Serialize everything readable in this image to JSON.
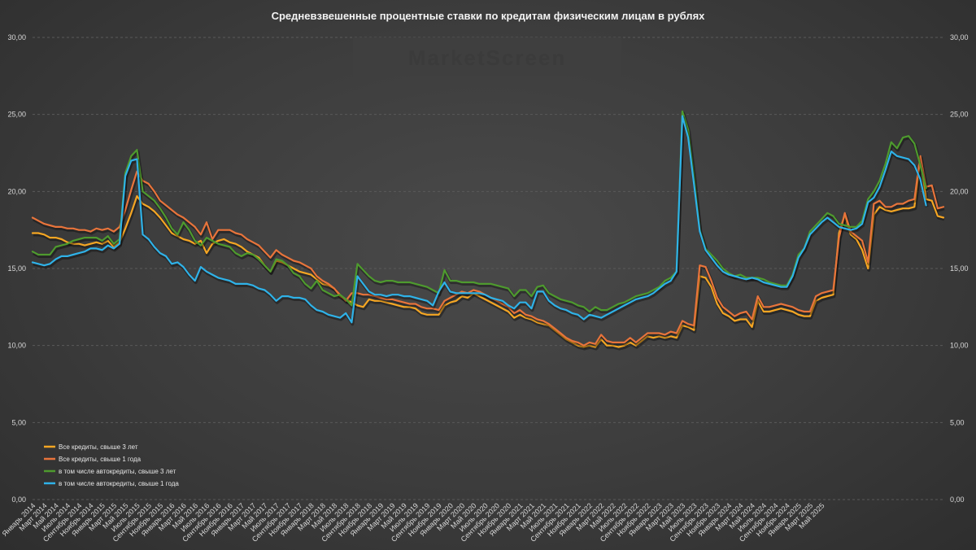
{
  "chart_data": {
    "type": "line",
    "title": "Средневзвешенные процентные ставки по кредитам физическим лицам в рублях",
    "xlabel": "",
    "ylabel": "",
    "ylim": [
      0,
      30
    ],
    "y_ticks": [
      "0,00",
      "5,00",
      "10,00",
      "15,00",
      "20,00",
      "25,00",
      "30,00"
    ],
    "grid": true,
    "legend_position": "bottom-left",
    "watermark": "MarketScreen",
    "x_tick_labels": [
      "Январь 2014",
      "Март 2014",
      "Май 2014",
      "Июль 2014",
      "Сентябрь 2014",
      "Ноябрь 2014",
      "Январь 2015",
      "Март 2015",
      "Май 2015",
      "Июль 2015",
      "Сентябрь 2015",
      "Ноябрь 2015",
      "Январь 2016",
      "Март 2016",
      "Май 2016",
      "Июль 2016",
      "Сентябрь 2016",
      "Ноябрь 2016",
      "Январь 2017",
      "Март 2017",
      "Май 2017",
      "Июль 2017",
      "Сентябрь 2017",
      "Ноябрь 2017",
      "Январь 2018",
      "Март 2018",
      "Май 2018",
      "Июль 2018",
      "Сентябрь 2018",
      "Ноябрь 2018",
      "Январь 2019",
      "Март 2019",
      "Май 2019",
      "Июль 2019",
      "Сентябрь 2019",
      "Ноябрь 2019",
      "Январь 2020",
      "Март 2020",
      "Май 2020",
      "Июль 2020",
      "Сентябрь 2020",
      "Ноябрь 2020",
      "Январь 2021",
      "Март 2021",
      "Май 2021",
      "Июль 2021",
      "Сентябрь 2021",
      "Ноябрь 2021",
      "Январь 2022",
      "Март 2022",
      "Май 2022",
      "Июль 2022",
      "Сентябрь 2022",
      "Ноябрь 2022",
      "Январь 2023",
      "Март 2023",
      "Май 2023",
      "Июль 2023",
      "Сентябрь 2023",
      "Ноябрь 2023",
      "Январь 2024",
      "Март 2024",
      "Май 2024",
      "Июль 2024",
      "Сентябрь 2024",
      "Ноябрь 2024",
      "Январь 2025",
      "Март 2025",
      "Май 2025"
    ],
    "series": [
      {
        "name": "Все кредиты, свыше 3 лет",
        "color": "#f5a623",
        "legend_color": "#f5a623",
        "values": [
          17.3,
          17.3,
          17.2,
          17.0,
          17.0,
          16.9,
          16.7,
          16.6,
          16.6,
          16.5,
          16.6,
          16.7,
          16.6,
          16.8,
          16.4,
          16.7,
          17.6,
          18.6,
          19.7,
          19.2,
          19.0,
          18.7,
          18.3,
          17.8,
          17.3,
          17.1,
          16.9,
          16.8,
          16.6,
          16.8,
          16.0,
          16.6,
          16.8,
          16.9,
          16.7,
          16.6,
          16.4,
          16.1,
          15.9,
          15.7,
          15.2,
          14.8,
          15.5,
          15.4,
          15.2,
          15.0,
          14.8,
          14.7,
          14.6,
          14.3,
          14.0,
          13.9,
          13.7,
          13.2,
          13.0,
          12.8,
          12.6,
          12.5,
          13.0,
          12.9,
          12.9,
          12.8,
          12.7,
          12.6,
          12.5,
          12.5,
          12.4,
          12.1,
          12.0,
          12.0,
          12.0,
          12.6,
          12.8,
          12.9,
          13.2,
          13.1,
          13.4,
          13.2,
          13.0,
          12.8,
          12.6,
          12.4,
          12.2,
          11.8,
          12.0,
          11.8,
          11.7,
          11.5,
          11.4,
          11.3,
          11.0,
          10.7,
          10.4,
          10.2,
          10.0,
          9.9,
          10.0,
          9.9,
          10.4,
          10.0,
          10.0,
          9.9,
          10.0,
          10.2,
          10.0,
          10.3,
          10.6,
          10.5,
          10.6,
          10.5,
          10.6,
          10.5,
          11.3,
          11.2,
          11.0,
          14.5,
          14.4,
          13.8,
          12.7,
          12.1,
          11.9,
          11.6,
          11.7,
          11.7,
          11.2,
          12.9,
          12.2,
          12.2,
          12.3,
          12.4,
          12.3,
          12.2,
          12.0,
          11.9,
          11.9,
          12.9,
          13.1,
          13.2,
          13.3,
          17.3,
          18.5,
          17.2,
          16.9,
          16.2,
          15.0,
          18.5,
          19.0,
          18.8,
          18.7,
          18.8,
          18.9,
          18.9,
          19.0,
          22.2,
          19.5,
          19.4,
          18.4,
          18.3
        ]
      },
      {
        "name": "Все кредиты, свыше 1 года",
        "color": "#e8743b",
        "legend_color": "#e8743b",
        "values": [
          18.3,
          18.1,
          17.9,
          17.8,
          17.7,
          17.7,
          17.6,
          17.6,
          17.5,
          17.5,
          17.4,
          17.6,
          17.5,
          17.6,
          17.4,
          17.7,
          18.8,
          20.1,
          21.3,
          20.7,
          20.5,
          20.0,
          19.4,
          19.1,
          18.8,
          18.5,
          18.3,
          18.0,
          17.7,
          17.2,
          18.0,
          16.9,
          17.5,
          17.5,
          17.5,
          17.3,
          17.2,
          16.9,
          16.7,
          16.5,
          16.1,
          15.7,
          16.2,
          15.9,
          15.7,
          15.5,
          15.4,
          15.2,
          15.0,
          14.5,
          14.2,
          14.0,
          13.7,
          13.3,
          12.9,
          13.4,
          13.4,
          13.3,
          13.3,
          13.2,
          13.1,
          13.0,
          13.0,
          12.9,
          12.8,
          12.7,
          12.7,
          12.5,
          12.4,
          12.4,
          12.3,
          12.9,
          13.1,
          13.3,
          13.5,
          13.4,
          13.6,
          13.5,
          13.3,
          13.1,
          12.9,
          12.7,
          12.5,
          12.1,
          12.3,
          12.0,
          11.9,
          11.7,
          11.6,
          11.4,
          11.1,
          10.8,
          10.5,
          10.3,
          10.2,
          10.0,
          10.2,
          10.1,
          10.7,
          10.3,
          10.2,
          10.2,
          10.2,
          10.5,
          10.2,
          10.5,
          10.8,
          10.8,
          10.8,
          10.7,
          10.9,
          10.8,
          11.6,
          11.4,
          11.3,
          15.2,
          15.1,
          14.2,
          13.1,
          12.5,
          12.2,
          11.9,
          12.1,
          12.2,
          11.7,
          13.2,
          12.5,
          12.5,
          12.6,
          12.7,
          12.6,
          12.5,
          12.3,
          12.2,
          12.2,
          13.2,
          13.4,
          13.5,
          13.6,
          17.0,
          18.6,
          17.4,
          17.1,
          16.8,
          15.4,
          19.2,
          19.4,
          19.0,
          19.0,
          19.2,
          19.2,
          19.4,
          19.5,
          22.3,
          20.3,
          20.4,
          18.9,
          19.0
        ]
      },
      {
        "name": "в том числе автокредиты, свыше 3 лет",
        "color": "#4e9a2e",
        "legend_color": "#4e9a2e",
        "values": [
          16.1,
          15.9,
          15.9,
          15.9,
          16.4,
          16.5,
          16.6,
          16.8,
          16.9,
          17.0,
          17.0,
          17.0,
          16.8,
          17.1,
          16.6,
          16.9,
          21.2,
          22.3,
          22.7,
          20.0,
          19.7,
          19.4,
          18.9,
          18.3,
          17.6,
          17.2,
          18.0,
          17.5,
          16.8,
          16.5,
          17.0,
          16.8,
          16.6,
          16.5,
          16.4,
          16.0,
          15.8,
          16.0,
          15.9,
          15.6,
          15.2,
          14.8,
          15.6,
          15.5,
          15.2,
          14.7,
          14.5,
          14.0,
          13.7,
          14.2,
          13.6,
          13.4,
          13.2,
          13.3,
          13.0,
          12.6,
          15.3,
          14.9,
          14.5,
          14.2,
          14.1,
          14.2,
          14.2,
          14.1,
          14.1,
          14.1,
          14.0,
          13.9,
          13.8,
          13.6,
          13.4,
          14.9,
          14.2,
          14.2,
          14.1,
          14.1,
          14.1,
          14.0,
          14.0,
          14.0,
          13.9,
          13.8,
          13.7,
          13.2,
          13.6,
          13.6,
          13.2,
          13.8,
          13.9,
          13.4,
          13.2,
          13.0,
          12.9,
          12.8,
          12.6,
          12.5,
          12.2,
          12.5,
          12.3,
          12.3,
          12.5,
          12.7,
          12.8,
          13.0,
          13.2,
          13.3,
          13.4,
          13.6,
          13.8,
          14.2,
          14.4,
          14.8,
          25.2,
          24.0,
          21.0,
          17.5,
          16.3,
          15.9,
          15.5,
          15.0,
          14.7,
          14.5,
          14.6,
          14.4,
          14.4,
          14.4,
          14.3,
          14.1,
          14.0,
          13.9,
          13.9,
          14.6,
          15.9,
          16.3,
          17.4,
          17.8,
          18.2,
          18.6,
          18.4,
          17.9,
          17.8,
          17.7,
          17.7,
          18.1,
          19.5,
          20.0,
          20.7,
          21.8,
          23.2,
          22.8,
          23.5,
          23.6,
          23.1,
          21.7,
          20.2
        ]
      },
      {
        "name": "в том числе автокредиты, свыше 1 года",
        "color": "#2fb2e8",
        "legend_color": "#2fb2e8",
        "values": [
          15.4,
          15.3,
          15.2,
          15.3,
          15.6,
          15.8,
          15.8,
          15.9,
          16.0,
          16.1,
          16.3,
          16.3,
          16.2,
          16.5,
          16.3,
          16.6,
          21.0,
          22.0,
          22.1,
          17.2,
          16.9,
          16.4,
          16.0,
          15.8,
          15.3,
          15.4,
          15.1,
          14.6,
          14.2,
          15.1,
          14.8,
          14.6,
          14.4,
          14.3,
          14.2,
          14.0,
          14.0,
          14.0,
          13.9,
          13.7,
          13.6,
          13.3,
          12.9,
          13.2,
          13.2,
          13.1,
          13.1,
          13.0,
          12.6,
          12.3,
          12.2,
          12.0,
          11.9,
          11.8,
          12.1,
          11.5,
          14.5,
          14.0,
          13.5,
          13.3,
          13.3,
          13.2,
          13.3,
          13.3,
          13.2,
          13.2,
          13.1,
          13.0,
          12.9,
          12.6,
          13.5,
          14.1,
          13.5,
          13.4,
          13.4,
          13.4,
          13.4,
          13.4,
          13.3,
          13.1,
          13.0,
          12.9,
          12.6,
          12.4,
          12.8,
          12.8,
          12.4,
          13.5,
          13.5,
          12.9,
          12.6,
          12.4,
          12.3,
          12.1,
          12.0,
          11.7,
          12.0,
          11.9,
          11.8,
          12.0,
          12.2,
          12.4,
          12.6,
          12.8,
          13.0,
          13.1,
          13.2,
          13.4,
          13.7,
          14.0,
          14.2,
          14.8,
          24.9,
          23.5,
          20.5,
          17.4,
          16.2,
          15.7,
          15.2,
          14.8,
          14.6,
          14.5,
          14.4,
          14.3,
          14.4,
          14.3,
          14.1,
          14.0,
          13.9,
          13.8,
          13.8,
          14.5,
          15.7,
          16.3,
          17.2,
          17.6,
          18.0,
          18.3,
          18.0,
          17.7,
          17.6,
          17.5,
          17.6,
          17.9,
          19.3,
          19.6,
          20.3,
          21.4,
          22.6,
          22.3,
          22.2,
          22.1,
          21.7,
          20.8,
          19.1
        ]
      }
    ]
  }
}
